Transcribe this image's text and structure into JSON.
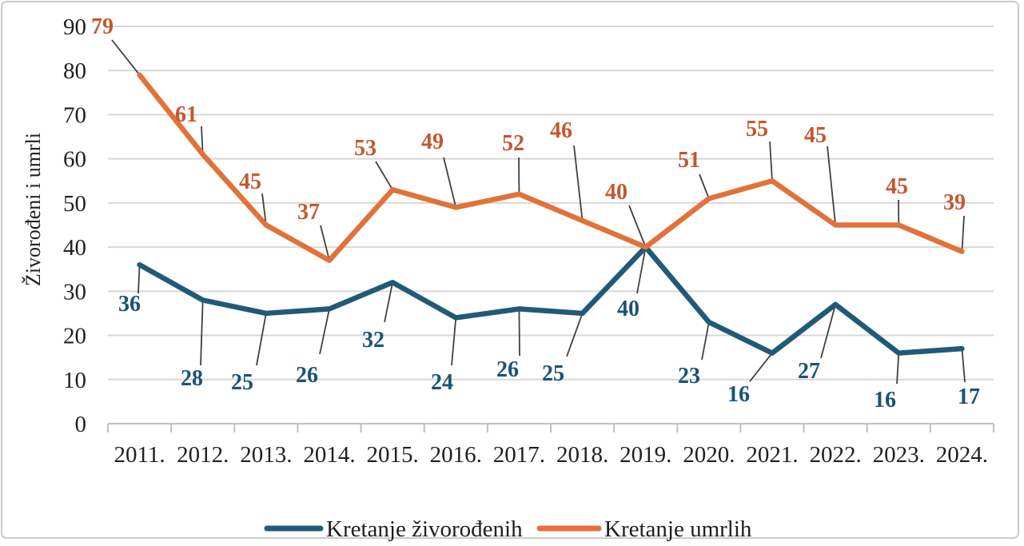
{
  "chart_data": {
    "type": "line",
    "title": "",
    "ylabel": "Živorođeni i umrli",
    "xlabel": "",
    "categories": [
      "2011.",
      "2012.",
      "2013.",
      "2014.",
      "2015.",
      "2016.",
      "2017.",
      "2018.",
      "2019.",
      "2020.",
      "2021.",
      "2022.",
      "2023.",
      "2024."
    ],
    "series": [
      {
        "name": "Kretanje živorođenih",
        "color": "#205A77",
        "label_color": "#1B5375",
        "values": [
          36,
          28,
          25,
          26,
          32,
          24,
          26,
          25,
          40,
          23,
          16,
          27,
          16,
          17
        ]
      },
      {
        "name": "Kretanje umrlih",
        "color": "#E0723A",
        "label_color": "#C4572E",
        "values": [
          79,
          61,
          45,
          37,
          53,
          49,
          52,
          46,
          40,
          51,
          55,
          45,
          45,
          39
        ]
      }
    ],
    "y_ticks": [
      0,
      10,
      20,
      30,
      40,
      50,
      60,
      70,
      80,
      90
    ],
    "ylim": [
      0,
      90
    ],
    "grid": true,
    "legend_position": "bottom",
    "data_labels": true
  },
  "colors": {
    "gridline": "#D8D8D8",
    "axis": "#BFBFBF",
    "leader": "#404040",
    "text": "#1F1F1F",
    "border": "#CBCBCB",
    "background": "#FFFFFF"
  }
}
